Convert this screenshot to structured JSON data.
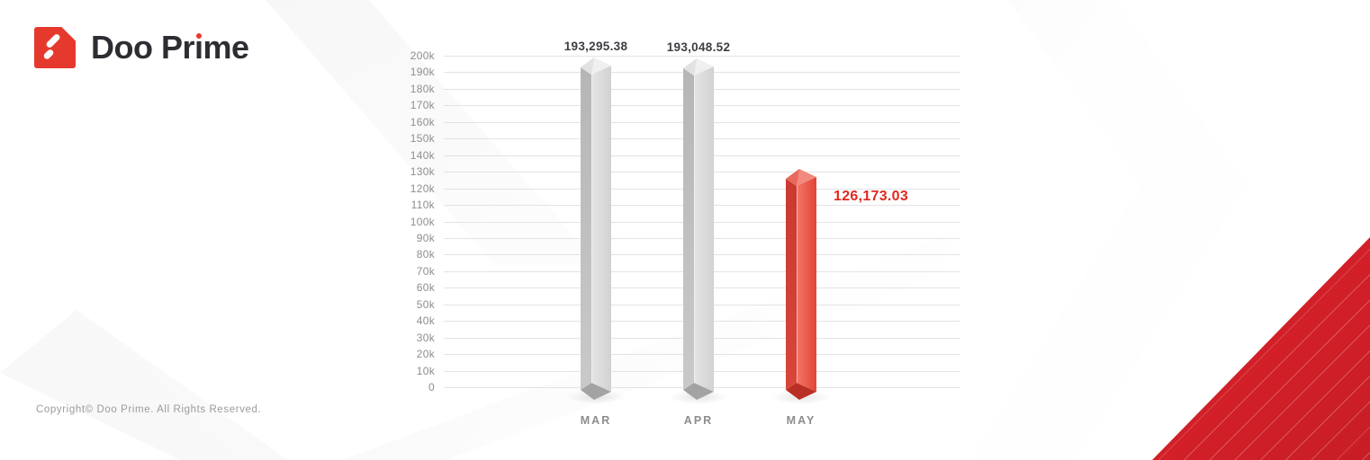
{
  "brand": {
    "name": "Doo Prime",
    "wordmark_pre": "Doo Pr",
    "wordmark_i": "ı",
    "wordmark_post": "me",
    "logo_red": "#e6392e",
    "text_color": "#2d2d33"
  },
  "footer": {
    "copyright": "Copyright© Doo Prime. All Rights Reserved."
  },
  "decor": {
    "triangle_red": "#d8222a"
  },
  "chart_data": {
    "type": "bar",
    "title": "",
    "xlabel": "",
    "ylabel": "",
    "categories": [
      "MAR",
      "APR",
      "MAY"
    ],
    "values": [
      193295.38,
      193048.52,
      126173.03
    ],
    "value_labels": [
      "193,295.38",
      "193,048.52",
      "126,173.03"
    ],
    "bar_colors": [
      "gray",
      "gray",
      "red"
    ],
    "label_positions": [
      "above",
      "above",
      "right"
    ],
    "ylim": [
      0,
      200000
    ],
    "y_ticks": [
      "0",
      "10k",
      "20k",
      "30k",
      "40k",
      "50k",
      "60k",
      "70k",
      "80k",
      "90k",
      "100k",
      "110k",
      "120k",
      "130k",
      "140k",
      "150k",
      "160k",
      "170k",
      "180k",
      "190k",
      "200k"
    ],
    "grid": true,
    "legend": false,
    "accent_red": "#e0291f",
    "palettes": {
      "gray": {
        "left_top": "#b6b6b6",
        "left_bottom": "#c9c9c9",
        "front_left": "#e4e4e4",
        "front_right": "#d2d2d2",
        "cap": "#f0f0f0",
        "cap_shade": "#e2e2e2",
        "base": "#a3a3a3",
        "label_color": "#3e3e44"
      },
      "red": {
        "left_top": "#c93a2f",
        "left_bottom": "#d8463a",
        "front_left": "#f3766b",
        "front_right": "#e24335",
        "cap": "#f2897e",
        "cap_shade": "#e76a5d",
        "base": "#ba2f25",
        "label_color": "#e0291f"
      }
    }
  }
}
